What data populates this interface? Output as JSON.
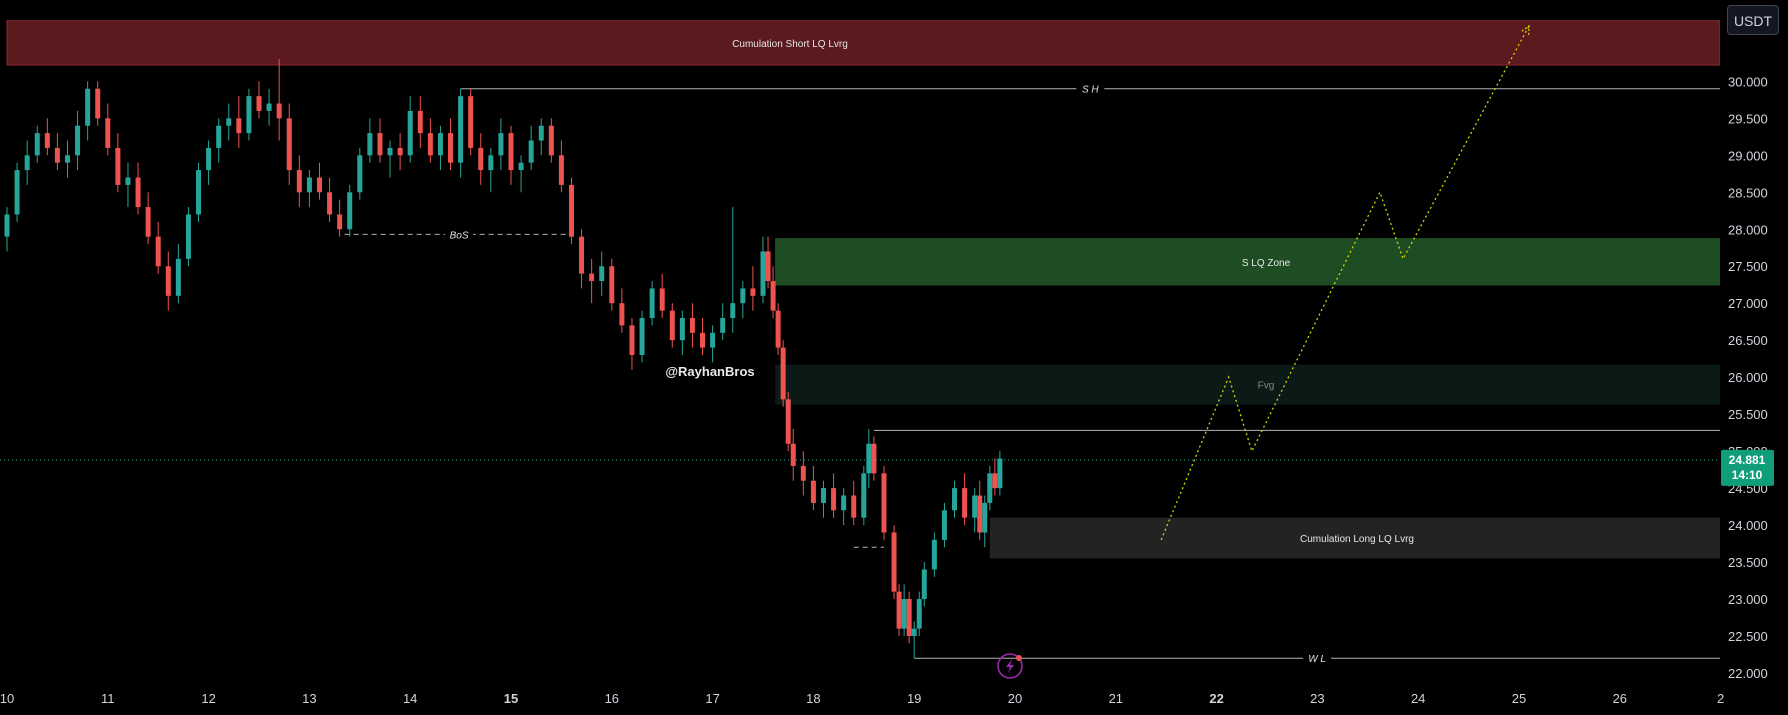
{
  "currency": "USDT",
  "watermark": "@RayhanBros",
  "colors": {
    "up": "#26a69a",
    "down": "#ef5350",
    "short_zone": "#5a1a1e",
    "s_lq_zone": "#1e4d24",
    "fvg_zone": "#0b1a16",
    "long_zone": "#232323",
    "projection": "#d4d400",
    "price_tag": "#0f9d7a",
    "level_line": "#b0b3b8"
  },
  "chart_data": {
    "type": "candlestick",
    "ylim": [
      21.77,
      31.1
    ],
    "xlim": [
      10,
      27
    ],
    "y_ticks": [
      "22.000",
      "22.500",
      "23.000",
      "23.500",
      "24.000",
      "24.500",
      "25.000",
      "25.500",
      "26.000",
      "26.500",
      "27.000",
      "27.500",
      "28.000",
      "28.500",
      "29.000",
      "29.500",
      "30.000"
    ],
    "x_ticks": [
      {
        "day": 10,
        "label": "10"
      },
      {
        "day": 11,
        "label": "11"
      },
      {
        "day": 12,
        "label": "12"
      },
      {
        "day": 13,
        "label": "13"
      },
      {
        "day": 14,
        "label": "14"
      },
      {
        "day": 15,
        "label": "15"
      },
      {
        "day": 16,
        "label": "16"
      },
      {
        "day": 17,
        "label": "17"
      },
      {
        "day": 18,
        "label": "18"
      },
      {
        "day": 19,
        "label": "19"
      },
      {
        "day": 20,
        "label": "20"
      },
      {
        "day": 21,
        "label": "21"
      },
      {
        "day": 22,
        "label": "22"
      },
      {
        "day": 23,
        "label": "23"
      },
      {
        "day": 24,
        "label": "24"
      },
      {
        "day": 25,
        "label": "25"
      },
      {
        "day": 26,
        "label": "26"
      },
      {
        "day": 27,
        "label": "2"
      }
    ],
    "current_price": {
      "value": 24.881,
      "label": "24.881",
      "countdown": "14:10"
    },
    "zones": [
      {
        "name": "Cumulation Short LQ  Lvrg",
        "x0": 10,
        "x1": 27,
        "y_low": 30.22,
        "y_high": 30.82
      },
      {
        "name": "S LQ Zone",
        "x0": 17.62,
        "x1": 27,
        "y_low": 27.24,
        "y_high": 27.88
      },
      {
        "name": "Fvg",
        "x0": 17.62,
        "x1": 27,
        "y_low": 25.63,
        "y_high": 26.17
      },
      {
        "name": "Cumulation Long LQ  Lvrg",
        "x0": 19.75,
        "x1": 27,
        "y_low": 23.55,
        "y_high": 24.1
      }
    ],
    "levels": [
      {
        "name": "S H",
        "value": 29.9,
        "x0": 14.5,
        "x1": 27
      },
      {
        "name": "BoS",
        "value": 27.93,
        "x0": 13.35,
        "x1": 15.62,
        "dashed": true
      },
      {
        "name": "W L",
        "value": 22.2,
        "x0": 19.0,
        "x1": 27
      },
      {
        "name": "",
        "value": 25.28,
        "x0": 18.6,
        "x1": 27
      },
      {
        "name": "",
        "value": 23.7,
        "x0": 18.4,
        "x1": 18.7,
        "dashed": true
      }
    ],
    "projection": [
      [
        21.45,
        23.8
      ],
      [
        22.12,
        26.0
      ],
      [
        22.35,
        25.0
      ],
      [
        23.62,
        28.5
      ],
      [
        23.85,
        27.6
      ],
      [
        25.1,
        30.75
      ]
    ],
    "candles": [
      [
        10.0,
        27.9,
        28.3,
        27.7,
        28.2
      ],
      [
        10.1,
        28.2,
        28.9,
        28.1,
        28.8
      ],
      [
        10.2,
        28.8,
        29.2,
        28.6,
        29.0
      ],
      [
        10.3,
        29.0,
        29.4,
        28.9,
        29.3
      ],
      [
        10.4,
        29.3,
        29.5,
        29.0,
        29.1
      ],
      [
        10.5,
        29.1,
        29.3,
        28.8,
        28.9
      ],
      [
        10.6,
        28.9,
        29.2,
        28.7,
        29.0
      ],
      [
        10.7,
        29.0,
        29.6,
        28.8,
        29.4
      ],
      [
        10.8,
        29.4,
        30.0,
        29.2,
        29.9
      ],
      [
        10.9,
        29.9,
        30.0,
        29.4,
        29.5
      ],
      [
        11.0,
        29.5,
        29.7,
        29.0,
        29.1
      ],
      [
        11.1,
        29.1,
        29.3,
        28.5,
        28.6
      ],
      [
        11.2,
        28.6,
        28.9,
        28.3,
        28.7
      ],
      [
        11.3,
        28.7,
        28.9,
        28.2,
        28.3
      ],
      [
        11.4,
        28.3,
        28.5,
        27.8,
        27.9
      ],
      [
        11.5,
        27.9,
        28.1,
        27.4,
        27.5
      ],
      [
        11.6,
        27.5,
        27.7,
        26.9,
        27.1
      ],
      [
        11.7,
        27.1,
        27.8,
        27.0,
        27.6
      ],
      [
        11.8,
        27.6,
        28.3,
        27.5,
        28.2
      ],
      [
        11.9,
        28.2,
        28.9,
        28.1,
        28.8
      ],
      [
        12.0,
        28.8,
        29.2,
        28.6,
        29.1
      ],
      [
        12.1,
        29.1,
        29.5,
        28.9,
        29.4
      ],
      [
        12.2,
        29.4,
        29.7,
        29.2,
        29.5
      ],
      [
        12.3,
        29.5,
        29.8,
        29.1,
        29.3
      ],
      [
        12.4,
        29.3,
        29.9,
        29.2,
        29.8
      ],
      [
        12.5,
        29.8,
        30.0,
        29.5,
        29.6
      ],
      [
        12.6,
        29.6,
        29.9,
        29.4,
        29.7
      ],
      [
        12.7,
        29.7,
        30.3,
        29.2,
        29.5
      ],
      [
        12.8,
        29.5,
        29.7,
        28.6,
        28.8
      ],
      [
        12.9,
        28.8,
        29.0,
        28.3,
        28.5
      ],
      [
        13.0,
        28.5,
        28.8,
        28.3,
        28.7
      ],
      [
        13.1,
        28.7,
        28.9,
        28.4,
        28.5
      ],
      [
        13.2,
        28.5,
        28.7,
        28.1,
        28.2
      ],
      [
        13.3,
        28.2,
        28.4,
        27.9,
        28.0
      ],
      [
        13.4,
        28.0,
        28.6,
        27.9,
        28.5
      ],
      [
        13.5,
        28.5,
        29.1,
        28.4,
        29.0
      ],
      [
        13.6,
        29.0,
        29.5,
        28.9,
        29.3
      ],
      [
        13.7,
        29.3,
        29.5,
        28.9,
        29.0
      ],
      [
        13.8,
        29.0,
        29.2,
        28.7,
        29.1
      ],
      [
        13.9,
        29.1,
        29.3,
        28.8,
        29.0
      ],
      [
        14.0,
        29.0,
        29.8,
        28.9,
        29.6
      ],
      [
        14.1,
        29.6,
        29.8,
        29.1,
        29.3
      ],
      [
        14.2,
        29.3,
        29.5,
        28.9,
        29.0
      ],
      [
        14.3,
        29.0,
        29.4,
        28.8,
        29.3
      ],
      [
        14.4,
        29.3,
        29.5,
        28.8,
        28.9
      ],
      [
        14.5,
        28.9,
        29.9,
        28.7,
        29.8
      ],
      [
        14.6,
        29.8,
        29.9,
        29.0,
        29.1
      ],
      [
        14.7,
        29.1,
        29.3,
        28.6,
        28.8
      ],
      [
        14.8,
        28.8,
        29.1,
        28.5,
        29.0
      ],
      [
        14.9,
        29.0,
        29.5,
        28.8,
        29.3
      ],
      [
        15.0,
        29.3,
        29.4,
        28.6,
        28.8
      ],
      [
        15.1,
        28.8,
        29.0,
        28.5,
        28.9
      ],
      [
        15.2,
        28.9,
        29.4,
        28.8,
        29.2
      ],
      [
        15.3,
        29.2,
        29.5,
        29.0,
        29.4
      ],
      [
        15.4,
        29.4,
        29.5,
        28.9,
        29.0
      ],
      [
        15.5,
        29.0,
        29.2,
        28.5,
        28.6
      ],
      [
        15.6,
        28.6,
        28.7,
        27.8,
        27.9
      ],
      [
        15.7,
        27.9,
        28.0,
        27.2,
        27.4
      ],
      [
        15.8,
        27.4,
        27.6,
        27.0,
        27.3
      ],
      [
        15.9,
        27.3,
        27.7,
        27.1,
        27.5
      ],
      [
        16.0,
        27.5,
        27.6,
        26.9,
        27.0
      ],
      [
        16.1,
        27.0,
        27.2,
        26.6,
        26.7
      ],
      [
        16.2,
        26.7,
        26.8,
        26.1,
        26.3
      ],
      [
        16.3,
        26.3,
        26.9,
        26.2,
        26.8
      ],
      [
        16.4,
        26.8,
        27.3,
        26.7,
        27.2
      ],
      [
        16.5,
        27.2,
        27.4,
        26.8,
        26.9
      ],
      [
        16.6,
        26.9,
        27.0,
        26.4,
        26.5
      ],
      [
        16.7,
        26.5,
        26.9,
        26.3,
        26.8
      ],
      [
        16.8,
        26.8,
        27.0,
        26.4,
        26.6
      ],
      [
        16.9,
        26.6,
        26.8,
        26.3,
        26.4
      ],
      [
        17.0,
        26.4,
        26.7,
        26.2,
        26.6
      ],
      [
        17.1,
        26.6,
        27.0,
        26.5,
        26.8
      ],
      [
        17.2,
        26.8,
        28.3,
        26.6,
        27.0
      ],
      [
        17.3,
        27.0,
        27.3,
        26.8,
        27.2
      ],
      [
        17.4,
        27.2,
        27.5,
        26.9,
        27.1
      ],
      [
        17.5,
        27.1,
        27.9,
        27.0,
        27.7
      ],
      [
        17.55,
        27.7,
        27.9,
        27.2,
        27.3
      ],
      [
        17.6,
        27.3,
        27.5,
        26.8,
        26.9
      ],
      [
        17.65,
        26.9,
        27.0,
        26.3,
        26.4
      ],
      [
        17.7,
        26.4,
        26.5,
        25.6,
        25.7
      ],
      [
        17.75,
        25.7,
        25.8,
        25.0,
        25.1
      ],
      [
        17.8,
        25.1,
        25.3,
        24.6,
        24.8
      ],
      [
        17.9,
        24.8,
        25.0,
        24.4,
        24.6
      ],
      [
        18.0,
        24.6,
        24.8,
        24.2,
        24.3
      ],
      [
        18.1,
        24.3,
        24.6,
        24.1,
        24.5
      ],
      [
        18.2,
        24.5,
        24.7,
        24.1,
        24.2
      ],
      [
        18.3,
        24.2,
        24.5,
        24.0,
        24.4
      ],
      [
        18.4,
        24.4,
        24.6,
        24.0,
        24.1
      ],
      [
        18.5,
        24.1,
        24.8,
        24.0,
        24.7
      ],
      [
        18.55,
        24.7,
        25.3,
        24.5,
        25.1
      ],
      [
        18.6,
        25.1,
        25.2,
        24.6,
        24.7
      ],
      [
        18.7,
        24.7,
        24.8,
        23.8,
        23.9
      ],
      [
        18.8,
        23.9,
        24.0,
        23.0,
        23.1
      ],
      [
        18.85,
        23.1,
        23.2,
        22.5,
        22.6
      ],
      [
        18.9,
        22.6,
        23.2,
        22.5,
        23.0
      ],
      [
        18.95,
        23.0,
        23.1,
        22.4,
        22.5
      ],
      [
        19.0,
        22.5,
        22.7,
        22.2,
        22.6
      ],
      [
        19.05,
        22.6,
        23.1,
        22.5,
        23.0
      ],
      [
        19.1,
        23.0,
        23.5,
        22.9,
        23.4
      ],
      [
        19.2,
        23.4,
        23.9,
        23.3,
        23.8
      ],
      [
        19.3,
        23.8,
        24.3,
        23.7,
        24.2
      ],
      [
        19.4,
        24.2,
        24.6,
        24.1,
        24.5
      ],
      [
        19.5,
        24.5,
        24.7,
        24.0,
        24.1
      ],
      [
        19.6,
        24.1,
        24.5,
        23.9,
        24.4
      ],
      [
        19.65,
        24.4,
        24.6,
        23.8,
        23.9
      ],
      [
        19.7,
        23.9,
        24.4,
        23.7,
        24.3
      ],
      [
        19.75,
        24.3,
        24.8,
        24.2,
        24.7
      ],
      [
        19.8,
        24.7,
        24.9,
        24.4,
        24.5
      ],
      [
        19.85,
        24.5,
        25.0,
        24.4,
        24.9
      ]
    ]
  }
}
